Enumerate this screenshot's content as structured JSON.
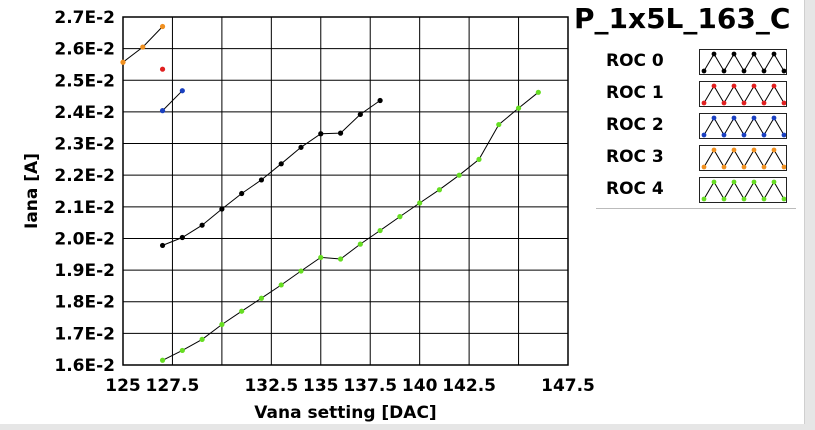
{
  "chart_data": {
    "type": "line",
    "title": "P_1x5L_163_C",
    "xlabel": "Vana setting [DAC]",
    "ylabel": "Iana [A]",
    "xlim": [
      125,
      147.5
    ],
    "ylim": [
      0.016,
      0.027
    ],
    "x_ticks": [
      125,
      127.5,
      130,
      132.5,
      135,
      137.5,
      140,
      142.5,
      145,
      147.5
    ],
    "x_tick_labels": [
      "125",
      "127.5",
      "",
      "132.5",
      "135",
      "137.5",
      "140",
      "142.5",
      "",
      "147.5"
    ],
    "y_ticks": [
      0.016,
      0.017,
      0.018,
      0.019,
      0.02,
      0.021,
      0.022,
      0.023,
      0.024,
      0.025,
      0.026,
      0.027
    ],
    "y_tick_labels": [
      "1.6E-2",
      "1.7E-2",
      "1.8E-2",
      "1.9E-2",
      "2.0E-2",
      "2.1E-2",
      "2.2E-2",
      "2.3E-2",
      "2.4E-2",
      "2.5E-2",
      "2.6E-2",
      "2.7E-2"
    ],
    "grid": true,
    "legend_position": "right",
    "series": [
      {
        "name": "ROC 0",
        "color": "#000000",
        "points": [
          [
            127,
            0.01978
          ],
          [
            128,
            0.02003
          ],
          [
            129,
            0.02042
          ],
          [
            130,
            0.02093
          ],
          [
            131,
            0.02142
          ],
          [
            132,
            0.02185
          ],
          [
            133,
            0.02236
          ],
          [
            134,
            0.02288
          ],
          [
            135,
            0.02331
          ],
          [
            136,
            0.02333
          ],
          [
            137,
            0.02392
          ],
          [
            138,
            0.02436
          ]
        ]
      },
      {
        "name": "ROC 1",
        "color": "#e02020",
        "points": [
          [
            127,
            0.02535
          ]
        ]
      },
      {
        "name": "ROC 2",
        "color": "#1a40c0",
        "points": [
          [
            127,
            0.02404
          ],
          [
            128,
            0.02467
          ]
        ]
      },
      {
        "name": "ROC 3",
        "color": "#f09020",
        "points": [
          [
            125,
            0.02557
          ],
          [
            126,
            0.02605
          ],
          [
            127,
            0.0267
          ]
        ]
      },
      {
        "name": "ROC 4",
        "color": "#66dd22",
        "points": [
          [
            127,
            0.01615
          ],
          [
            128,
            0.01646
          ],
          [
            129,
            0.01681
          ],
          [
            130,
            0.01728
          ],
          [
            131,
            0.0177
          ],
          [
            132,
            0.01811
          ],
          [
            133,
            0.01853
          ],
          [
            134,
            0.01897
          ],
          [
            135,
            0.0194
          ],
          [
            136,
            0.01935
          ],
          [
            137,
            0.01982
          ],
          [
            138,
            0.02025
          ],
          [
            139,
            0.02069
          ],
          [
            140,
            0.02112
          ],
          [
            141,
            0.02154
          ],
          [
            142,
            0.022
          ],
          [
            143,
            0.0225
          ],
          [
            144,
            0.0236
          ],
          [
            145,
            0.02412
          ],
          [
            146,
            0.02462
          ]
        ]
      }
    ]
  }
}
